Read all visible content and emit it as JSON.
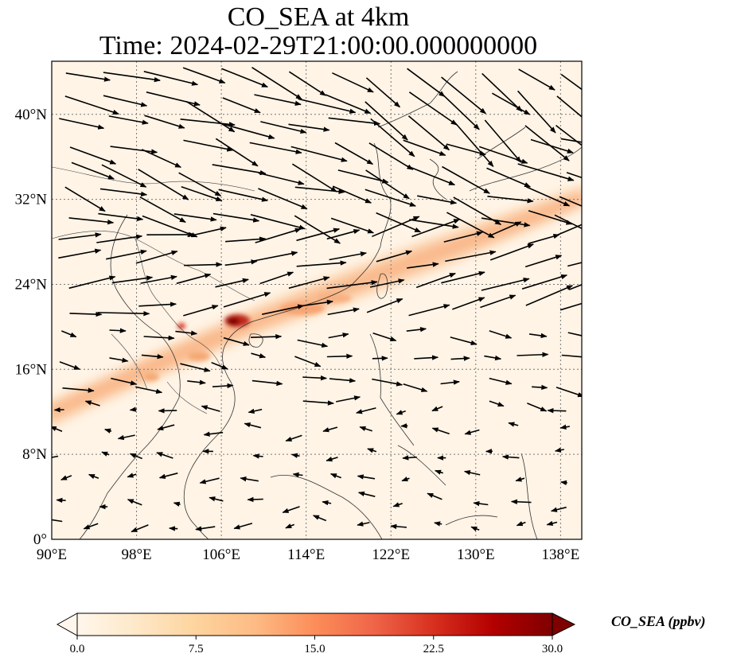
{
  "title": {
    "line1": "CO_SEA at 4km",
    "line2": "Time: 2024-02-29T21:00:00.000000000"
  },
  "map": {
    "lon_range": [
      90,
      140
    ],
    "lat_range": [
      0,
      45
    ],
    "lon_ticks": [
      "90°E",
      "98°E",
      "106°E",
      "114°E",
      "122°E",
      "130°E",
      "138°E"
    ],
    "lat_ticks": [
      "0°",
      "8°N",
      "16°N",
      "24°N",
      "32°N",
      "40°N"
    ],
    "lon_tick_values": [
      90,
      98,
      106,
      114,
      122,
      130,
      138
    ],
    "lat_tick_values": [
      0,
      8,
      16,
      24,
      32,
      40
    ],
    "gridlines": true,
    "gridline_style": "dotted",
    "field_colormap": "OrRd",
    "plume_color_low": "#fdeeda",
    "plume_color_mid": "#f4a873",
    "plume_color_high": "#8b0a0a"
  },
  "colorbar": {
    "label": "CO_SEA (ppbv)",
    "ticks": [
      "0.0",
      "7.5",
      "15.0",
      "22.5",
      "30.0"
    ],
    "tick_values": [
      0,
      7.5,
      15,
      22.5,
      30
    ],
    "range": [
      0,
      30
    ],
    "extend": "both",
    "stops": [
      "#fff7ec",
      "#fee8c8",
      "#fdd49e",
      "#fdbb84",
      "#fc8d59",
      "#ef6548",
      "#d7301f",
      "#b30000",
      "#7f0000"
    ]
  }
}
